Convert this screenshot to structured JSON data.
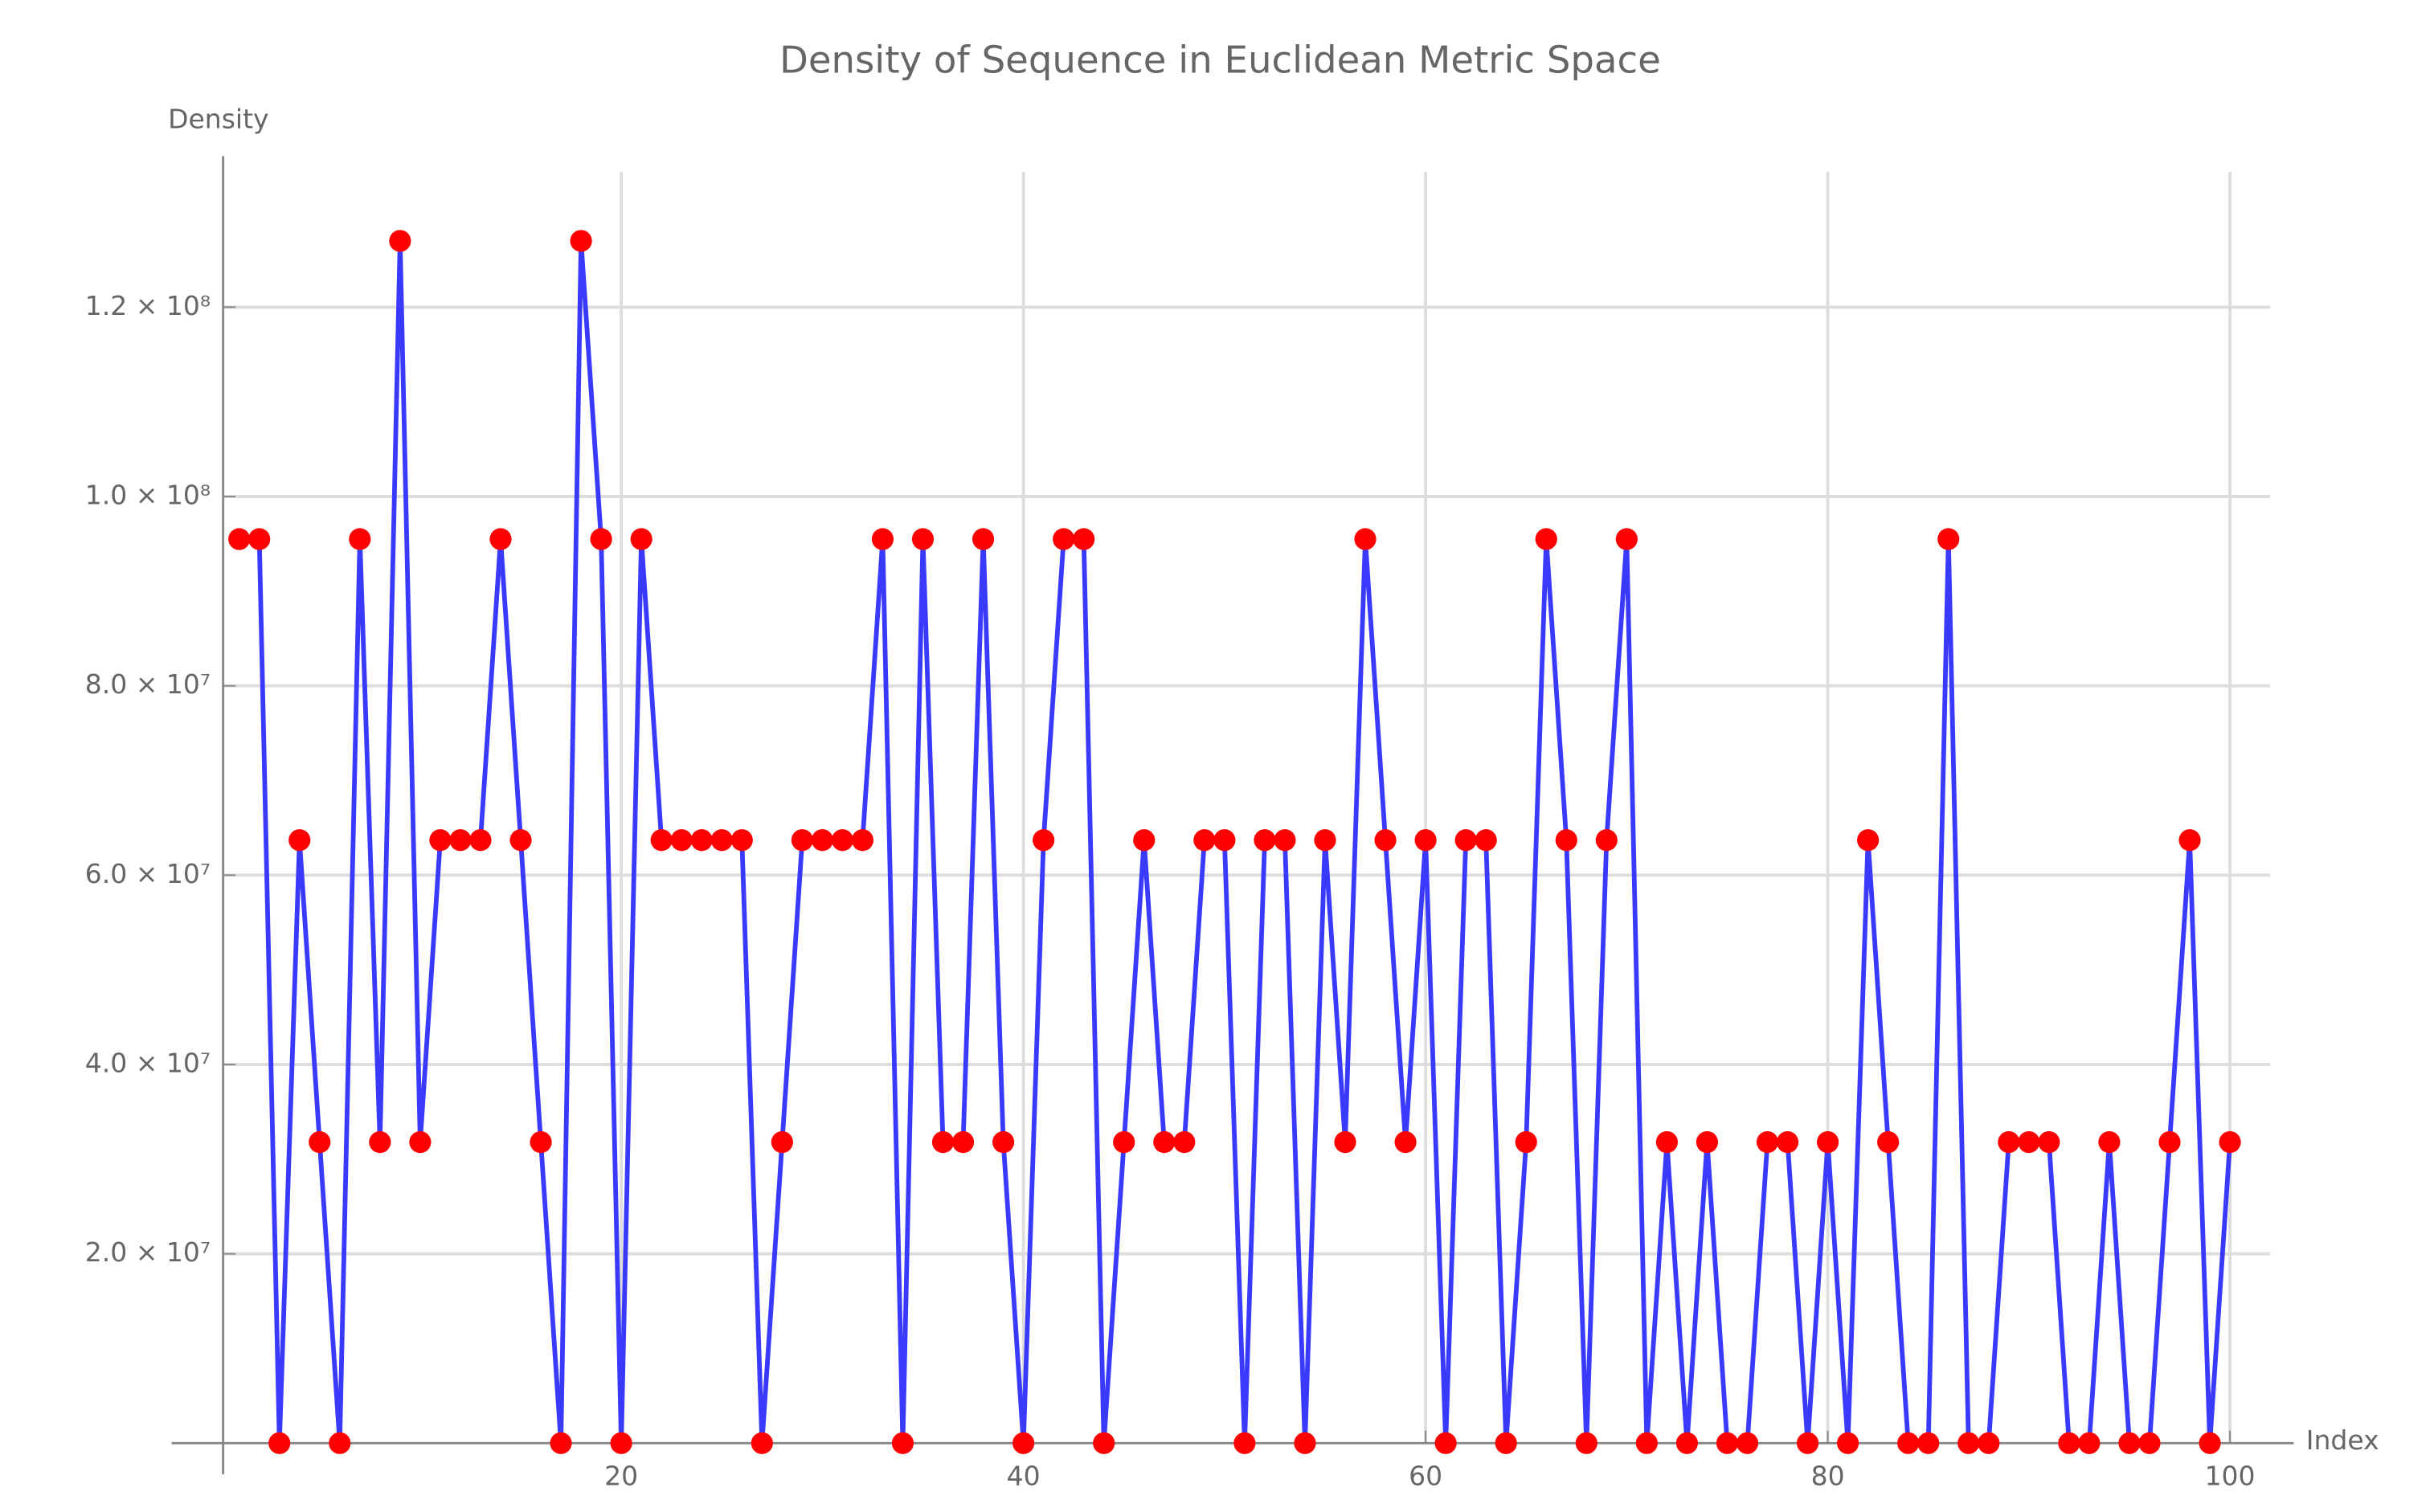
{
  "chart_data": {
    "type": "line",
    "title": "Density of Sequence in Euclidean Metric Space",
    "x_label": "Index",
    "y_label": "Density",
    "x": [
      1,
      2,
      3,
      4,
      5,
      6,
      7,
      8,
      9,
      10,
      11,
      12,
      13,
      14,
      15,
      16,
      17,
      18,
      19,
      20,
      21,
      22,
      23,
      24,
      25,
      26,
      27,
      28,
      29,
      30,
      31,
      32,
      33,
      34,
      35,
      36,
      37,
      38,
      39,
      40,
      41,
      42,
      43,
      44,
      45,
      46,
      47,
      48,
      49,
      50,
      51,
      52,
      53,
      54,
      55,
      56,
      57,
      58,
      59,
      60,
      61,
      62,
      63,
      64,
      65,
      66,
      67,
      68,
      69,
      70,
      71,
      72,
      73,
      74,
      75,
      76,
      77,
      78,
      79,
      80,
      81,
      82,
      83,
      84,
      85,
      86,
      87,
      88,
      89,
      90,
      91,
      92,
      93,
      94,
      95,
      96,
      97,
      98,
      99,
      100
    ],
    "series": [
      {
        "name": "Density",
        "color": "#3a3aff",
        "marker_color": "#ff0000",
        "values": [
          95500000,
          95500000,
          0,
          63700000,
          31800000,
          0,
          95500000,
          31800000,
          127000000,
          31800000,
          63700000,
          63700000,
          63700000,
          95500000,
          63700000,
          31800000,
          0,
          127000000,
          95500000,
          0,
          95500000,
          63700000,
          63700000,
          63700000,
          63700000,
          63700000,
          0,
          31800000,
          63700000,
          63700000,
          63700000,
          63700000,
          95500000,
          0,
          95500000,
          31800000,
          31800000,
          95500000,
          31800000,
          0,
          63700000,
          95500000,
          95500000,
          0,
          31800000,
          63700000,
          31800000,
          31800000,
          63700000,
          63700000,
          0,
          63700000,
          63700000,
          0,
          63700000,
          31800000,
          95500000,
          63700000,
          31800000,
          63700000,
          0,
          63700000,
          63700000,
          0,
          31800000,
          95500000,
          63700000,
          0,
          63700000,
          95500000,
          0,
          31800000,
          0,
          31800000,
          0,
          0,
          31800000,
          31800000,
          0,
          31800000,
          0,
          63700000,
          31800000,
          0,
          0,
          95500000,
          0,
          0,
          31800000,
          31800000,
          31800000,
          0,
          0,
          31800000,
          0,
          0,
          31800000,
          63700000,
          0,
          31800000
        ]
      }
    ],
    "xlim": [
      0.2,
      102
    ],
    "xticks": [
      20,
      40,
      60,
      80,
      100
    ],
    "ylim": [
      0,
      134300000
    ],
    "yticks": [
      {
        "value": 20000000,
        "label": "2.0 × 10⁷"
      },
      {
        "value": 40000000,
        "label": "4.0 × 10⁷"
      },
      {
        "value": 60000000,
        "label": "6.0 × 10⁷"
      },
      {
        "value": 80000000,
        "label": "8.0 × 10⁷"
      },
      {
        "value": 100000000,
        "label": "1.0 × 10⁸"
      },
      {
        "value": 120000000,
        "label": "1.2 × 10⁸"
      }
    ],
    "grid": true
  }
}
